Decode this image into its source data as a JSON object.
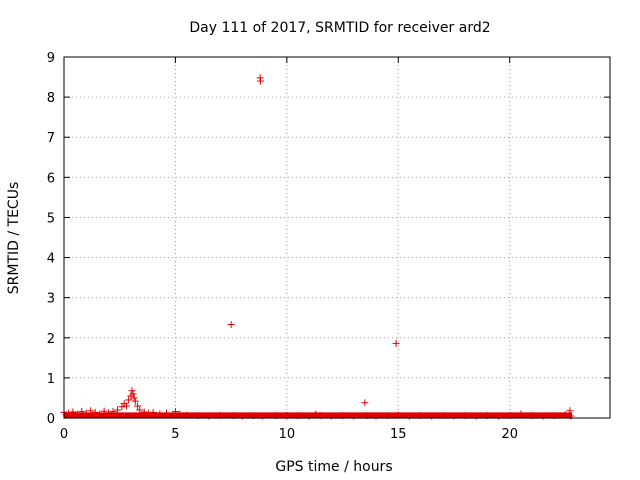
{
  "chart_data": {
    "type": "scatter",
    "title": "Day 111 of 2017, SRMTID for receiver ard2",
    "xlabel": "GPS time / hours",
    "ylabel": "SRMTID / TECUs",
    "xlim": [
      0,
      24.5
    ],
    "ylim": [
      0,
      9
    ],
    "xticks": [
      0,
      5,
      10,
      15,
      20
    ],
    "yticks": [
      0,
      1,
      2,
      3,
      4,
      5,
      6,
      7,
      8,
      9
    ],
    "grid": true,
    "marker": "+",
    "color": "#e00000",
    "series": [
      {
        "name": "SRMTID",
        "points": [
          [
            0.0,
            0.14
          ],
          [
            0.1,
            0.08
          ],
          [
            0.2,
            0.12
          ],
          [
            0.4,
            0.15
          ],
          [
            0.6,
            0.1
          ],
          [
            0.8,
            0.16
          ],
          [
            1.0,
            0.12
          ],
          [
            1.2,
            0.18
          ],
          [
            1.4,
            0.14
          ],
          [
            1.6,
            0.1
          ],
          [
            1.8,
            0.17
          ],
          [
            2.0,
            0.13
          ],
          [
            2.2,
            0.16
          ],
          [
            2.4,
            0.2
          ],
          [
            2.6,
            0.28
          ],
          [
            2.7,
            0.36
          ],
          [
            2.8,
            0.3
          ],
          [
            2.9,
            0.45
          ],
          [
            3.0,
            0.55
          ],
          [
            3.05,
            0.68
          ],
          [
            3.1,
            0.6
          ],
          [
            3.15,
            0.5
          ],
          [
            3.2,
            0.42
          ],
          [
            3.3,
            0.3
          ],
          [
            3.4,
            0.2
          ],
          [
            3.6,
            0.15
          ],
          [
            3.8,
            0.12
          ],
          [
            4.0,
            0.14
          ],
          [
            4.3,
            0.1
          ],
          [
            4.6,
            0.12
          ],
          [
            5.0,
            0.16
          ],
          [
            5.2,
            0.1
          ],
          [
            5.5,
            0.07
          ],
          [
            6.0,
            0.06
          ],
          [
            6.5,
            0.05
          ],
          [
            7.0,
            0.07
          ],
          [
            7.5,
            2.33
          ],
          [
            7.6,
            0.06
          ],
          [
            8.0,
            0.05
          ],
          [
            8.5,
            0.06
          ],
          [
            8.8,
            8.48
          ],
          [
            8.82,
            8.4
          ],
          [
            8.9,
            0.05
          ],
          [
            9.5,
            0.06
          ],
          [
            10.0,
            0.05
          ],
          [
            10.5,
            0.06
          ],
          [
            11.0,
            0.05
          ],
          [
            11.3,
            0.1
          ],
          [
            11.5,
            0.06
          ],
          [
            12.0,
            0.05
          ],
          [
            12.5,
            0.06
          ],
          [
            13.0,
            0.05
          ],
          [
            13.5,
            0.38
          ],
          [
            13.6,
            0.06
          ],
          [
            14.0,
            0.05
          ],
          [
            14.5,
            0.06
          ],
          [
            14.9,
            1.86
          ],
          [
            15.0,
            0.07
          ],
          [
            15.5,
            0.05
          ],
          [
            16.0,
            0.06
          ],
          [
            16.5,
            0.05
          ],
          [
            17.0,
            0.06
          ],
          [
            17.5,
            0.05
          ],
          [
            18.0,
            0.06
          ],
          [
            18.5,
            0.05
          ],
          [
            19.0,
            0.06
          ],
          [
            19.5,
            0.05
          ],
          [
            20.0,
            0.06
          ],
          [
            20.5,
            0.1
          ],
          [
            21.0,
            0.06
          ],
          [
            21.5,
            0.05
          ],
          [
            22.0,
            0.06
          ],
          [
            22.5,
            0.08
          ],
          [
            22.7,
            0.18
          ],
          [
            22.75,
            0.05
          ]
        ]
      }
    ]
  }
}
